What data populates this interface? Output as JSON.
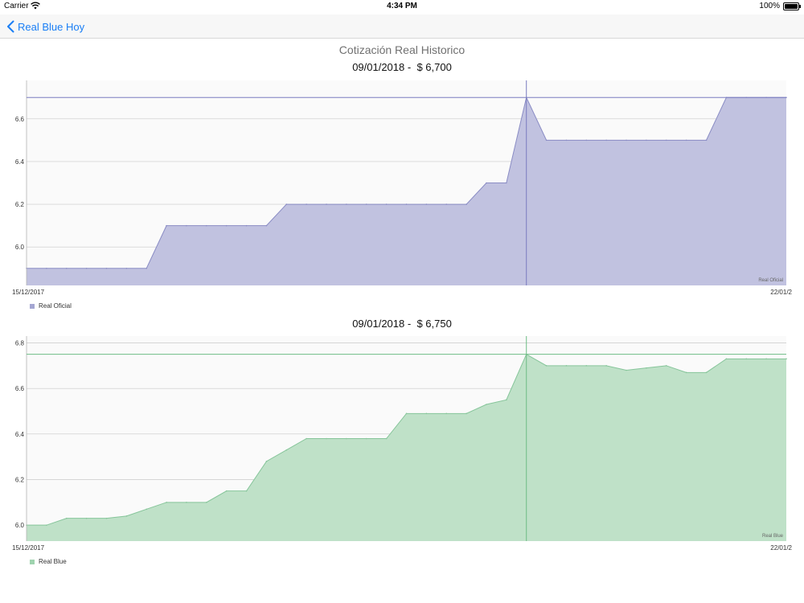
{
  "status_bar": {
    "carrier": "Carrier",
    "time": "4:34 PM",
    "battery": "100%",
    "wifi_icon": "wifi-icon",
    "battery_icon": "battery-icon"
  },
  "nav": {
    "back_label": "Real Blue Hoy",
    "back_icon": "chevron-left-icon"
  },
  "page": {
    "title": "Cotización Real Historico"
  },
  "colors": {
    "accent": "#1a7ef5",
    "oficial_fill": "#c1c2e0",
    "oficial_line": "#8a8cc4",
    "blue_fill": "#bfe1c8",
    "blue_line": "#86c59a",
    "plot_bg": "#fafafa",
    "grid": "#c8c8c8"
  },
  "chart_data": [
    {
      "type": "area",
      "header_date": "09/01/2018",
      "header_separator": " -  ",
      "header_value": "$ 6,700",
      "x_start_label": "15/12/2017",
      "x_end_label": "22/01/2",
      "ylim": [
        5.82,
        6.78
      ],
      "yticks": [
        6.0,
        6.2,
        6.4,
        6.6
      ],
      "ytick_labels": [
        "6.0",
        "6.2",
        "6.4",
        "6.6"
      ],
      "grid": true,
      "legend_placement": "bottom-left",
      "series": [
        {
          "name": "Real Oficial",
          "values": [
            5.9,
            5.9,
            5.9,
            5.9,
            5.9,
            5.9,
            5.9,
            6.1,
            6.1,
            6.1,
            6.1,
            6.1,
            6.1,
            6.2,
            6.2,
            6.2,
            6.2,
            6.2,
            6.2,
            6.2,
            6.2,
            6.2,
            6.2,
            6.3,
            6.3,
            6.7,
            6.5,
            6.5,
            6.5,
            6.5,
            6.5,
            6.5,
            6.5,
            6.5,
            6.5,
            6.7,
            6.7,
            6.7,
            6.7
          ]
        }
      ],
      "selected_index": 25,
      "selected_value": 6.7
    },
    {
      "type": "area",
      "header_date": "09/01/2018",
      "header_separator": " -  ",
      "header_value": "$ 6,750",
      "x_start_label": "15/12/2017",
      "x_end_label": "22/01/2",
      "ylim": [
        5.93,
        6.83
      ],
      "yticks": [
        6.0,
        6.2,
        6.4,
        6.6,
        6.8
      ],
      "ytick_labels": [
        "6.0",
        "6.2",
        "6.4",
        "6.6",
        "6.8"
      ],
      "grid": true,
      "legend_placement": "bottom-left",
      "series": [
        {
          "name": "Real Blue",
          "values": [
            6.0,
            6.0,
            6.03,
            6.03,
            6.03,
            6.04,
            6.07,
            6.1,
            6.1,
            6.1,
            6.15,
            6.15,
            6.28,
            6.33,
            6.38,
            6.38,
            6.38,
            6.38,
            6.38,
            6.49,
            6.49,
            6.49,
            6.49,
            6.53,
            6.55,
            6.75,
            6.7,
            6.7,
            6.7,
            6.7,
            6.68,
            6.69,
            6.7,
            6.67,
            6.67,
            6.73,
            6.73,
            6.73,
            6.73
          ]
        }
      ],
      "selected_index": 25,
      "selected_value": 6.75
    }
  ]
}
